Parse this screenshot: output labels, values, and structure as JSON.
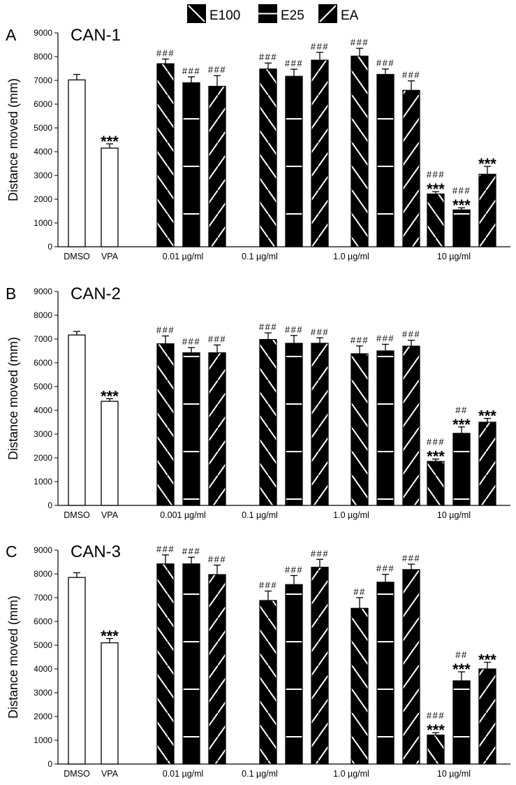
{
  "legend": [
    {
      "label": "E100",
      "pattern": "backslash"
    },
    {
      "label": "E25",
      "pattern": "horizontal"
    },
    {
      "label": "EA",
      "pattern": "slash"
    }
  ],
  "colors": {
    "bar_fill": "#000000",
    "control_fill": "#ffffff",
    "pattern_line": "#ffffff",
    "axis": "#000000"
  },
  "chart_data": [
    {
      "type": "bar",
      "panel": "A",
      "title": "CAN-1",
      "ylabel": "Distance moved (mm)",
      "ylim": [
        0,
        9000
      ],
      "yticks": [
        0,
        1000,
        2000,
        3000,
        4000,
        5000,
        6000,
        7000,
        8000,
        9000
      ],
      "groups": [
        {
          "label": "DMSO",
          "bars": [
            {
              "series": "DMSO",
              "value": 7020,
              "error": 230
            }
          ]
        },
        {
          "label": "VPA",
          "bars": [
            {
              "series": "VPA",
              "value": 4150,
              "error": 180,
              "stars": "***"
            }
          ]
        },
        {
          "label": "0.01 µg/ml",
          "bars": [
            {
              "series": "E100",
              "value": 7700,
              "error": 200,
              "hash": "###"
            },
            {
              "series": "E25",
              "value": 6900,
              "error": 250,
              "hash": "###"
            },
            {
              "series": "EA",
              "value": 6750,
              "error": 450,
              "hash": "###"
            }
          ]
        },
        {
          "label": "0.1 µg/ml",
          "bars": [
            {
              "series": "E100",
              "value": 7480,
              "error": 250,
              "hash": "###"
            },
            {
              "series": "E25",
              "value": 7170,
              "error": 300,
              "hash": "###"
            },
            {
              "series": "EA",
              "value": 7850,
              "error": 330,
              "hash": "###"
            }
          ]
        },
        {
          "label": "1.0  µg/ml",
          "bars": [
            {
              "series": "E100",
              "value": 8020,
              "error": 330,
              "hash": "###"
            },
            {
              "series": "E25",
              "value": 7250,
              "error": 230,
              "hash": "###"
            },
            {
              "series": "EA",
              "value": 6580,
              "error": 400,
              "hash": "###"
            }
          ]
        },
        {
          "label": "10 µg/ml",
          "bars": [
            {
              "series": "E100",
              "value": 2220,
              "error": 100,
              "hash": "###",
              "stars": "***"
            },
            {
              "series": "E25",
              "value": 1550,
              "error": 90,
              "hash": "###",
              "stars": "***"
            },
            {
              "series": "EA",
              "value": 3050,
              "error": 330,
              "stars": "***"
            }
          ]
        }
      ]
    },
    {
      "type": "bar",
      "panel": "B",
      "title": "CAN-2",
      "ylabel": "Distance moved (mm)",
      "ylim": [
        0,
        9000
      ],
      "yticks": [
        0,
        1000,
        2000,
        3000,
        4000,
        5000,
        6000,
        7000,
        8000,
        9000
      ],
      "groups": [
        {
          "label": "DMSO",
          "bars": [
            {
              "series": "DMSO",
              "value": 7170,
              "error": 150
            }
          ]
        },
        {
          "label": "VPA",
          "bars": [
            {
              "series": "VPA",
              "value": 4380,
              "error": 110,
              "stars": "***"
            }
          ]
        },
        {
          "label": "0.001 µg/ml",
          "bars": [
            {
              "series": "E100",
              "value": 6800,
              "error": 330,
              "hash": "###"
            },
            {
              "series": "E25",
              "value": 6420,
              "error": 220,
              "hash": "###"
            },
            {
              "series": "EA",
              "value": 6420,
              "error": 330,
              "hash": "###"
            }
          ]
        },
        {
          "label": "0.1 µg/ml",
          "bars": [
            {
              "series": "E100",
              "value": 6980,
              "error": 280,
              "hash": "###"
            },
            {
              "series": "E25",
              "value": 6820,
              "error": 330,
              "hash": "###"
            },
            {
              "series": "EA",
              "value": 6820,
              "error": 230,
              "hash": "###"
            }
          ]
        },
        {
          "label": "1.0 µg/ml",
          "bars": [
            {
              "series": "E100",
              "value": 6380,
              "error": 330,
              "hash": "###"
            },
            {
              "series": "E25",
              "value": 6500,
              "error": 280,
              "hash": "###"
            },
            {
              "series": "EA",
              "value": 6700,
              "error": 250,
              "hash": "###"
            }
          ]
        },
        {
          "label": "10 µg/ml",
          "bars": [
            {
              "series": "E100",
              "value": 1850,
              "error": 100,
              "hash": "###",
              "stars": "***"
            },
            {
              "series": "E25",
              "value": 3030,
              "error": 270,
              "hash": "##",
              "stars": "***"
            },
            {
              "series": "EA",
              "value": 3500,
              "error": 160,
              "stars": "***"
            }
          ]
        }
      ]
    },
    {
      "type": "bar",
      "panel": "C",
      "title": "CAN-3",
      "ylabel": "Distance moved (mm)",
      "ylim": [
        0,
        9000
      ],
      "yticks": [
        0,
        1000,
        2000,
        3000,
        4000,
        5000,
        6000,
        7000,
        8000,
        9000
      ],
      "groups": [
        {
          "label": "DMSO",
          "bars": [
            {
              "series": "DMSO",
              "value": 7850,
              "error": 200
            }
          ]
        },
        {
          "label": "VPA",
          "bars": [
            {
              "series": "VPA",
              "value": 5100,
              "error": 180,
              "stars": "***"
            }
          ]
        },
        {
          "label": "0.01 µg/ml",
          "bars": [
            {
              "series": "E100",
              "value": 8420,
              "error": 380,
              "hash": "###"
            },
            {
              "series": "E25",
              "value": 8420,
              "error": 280,
              "hash": "###"
            },
            {
              "series": "EA",
              "value": 7970,
              "error": 400,
              "hash": "###"
            }
          ]
        },
        {
          "label": "0.1 µg/ml",
          "bars": [
            {
              "series": "E100",
              "value": 6880,
              "error": 400,
              "hash": "###"
            },
            {
              "series": "E25",
              "value": 7550,
              "error": 380,
              "hash": "###"
            },
            {
              "series": "EA",
              "value": 8280,
              "error": 330,
              "hash": "###"
            }
          ]
        },
        {
          "label": "1.0 µg/ml",
          "bars": [
            {
              "series": "E100",
              "value": 6550,
              "error": 450,
              "hash": "##"
            },
            {
              "series": "E25",
              "value": 7650,
              "error": 330,
              "hash": "###"
            },
            {
              "series": "EA",
              "value": 8180,
              "error": 230,
              "hash": "###"
            }
          ]
        },
        {
          "label": "10 µg/ml",
          "bars": [
            {
              "series": "E100",
              "value": 1220,
              "error": 100,
              "hash": "###",
              "stars": "***"
            },
            {
              "series": "E25",
              "value": 3500,
              "error": 380,
              "hash": "##",
              "stars": "***"
            },
            {
              "series": "EA",
              "value": 4000,
              "error": 280,
              "stars": "***"
            }
          ]
        }
      ]
    }
  ]
}
